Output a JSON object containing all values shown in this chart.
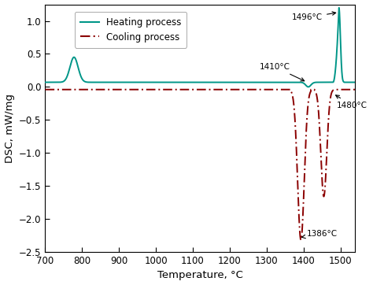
{
  "xlim": [
    700,
    1540
  ],
  "ylim": [
    -2.5,
    1.25
  ],
  "xticks": [
    700,
    800,
    900,
    1000,
    1100,
    1200,
    1300,
    1400,
    1500
  ],
  "yticks": [
    -2.5,
    -2.0,
    -1.5,
    -1.0,
    -0.5,
    0.0,
    0.5,
    1.0
  ],
  "xlabel": "Temperature, °C",
  "ylabel": "DSC, mW/mg",
  "heating_color": "#009688",
  "cooling_color": "#8B0000",
  "legend_labels": [
    "Heating process",
    "Cooling process"
  ],
  "background_color": "#ffffff",
  "figsize": [
    4.74,
    3.62
  ],
  "dpi": 100
}
